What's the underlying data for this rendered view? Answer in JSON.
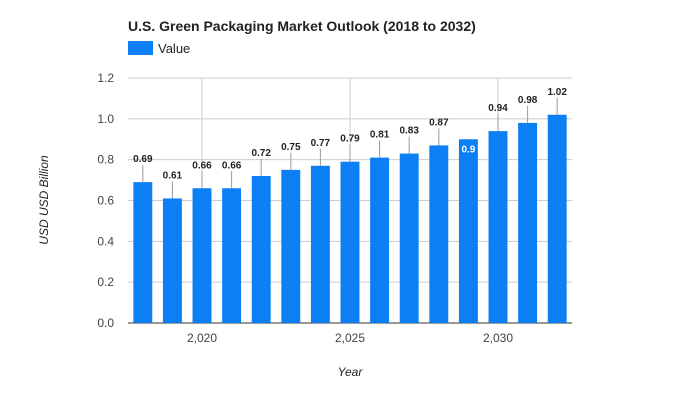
{
  "chart_data": {
    "type": "bar",
    "title": "U.S. Green Packaging Market Outlook (2018 to 2032)",
    "xlabel": "Year",
    "ylabel": "USD USD Billion",
    "ylim": [
      0,
      1.2
    ],
    "yticks": [
      "0.0",
      "0.2",
      "0.4",
      "0.6",
      "0.8",
      "1.0",
      "1.2"
    ],
    "xticks": [
      {
        "x": 2020,
        "label": "2,020"
      },
      {
        "x": 2025,
        "label": "2,025"
      },
      {
        "x": 2030,
        "label": "2,030"
      }
    ],
    "grid": true,
    "legend_position": "top-left",
    "series": [
      {
        "name": "Value",
        "color": "#0d7ff5",
        "x": [
          2018,
          2019,
          2020,
          2021,
          2022,
          2023,
          2024,
          2025,
          2026,
          2027,
          2028,
          2029,
          2030,
          2031,
          2032
        ],
        "values": [
          0.69,
          0.61,
          0.66,
          0.66,
          0.72,
          0.75,
          0.77,
          0.79,
          0.81,
          0.83,
          0.87,
          0.9,
          0.94,
          0.98,
          1.02
        ],
        "labels": [
          "0.69",
          "0.61",
          "0.66",
          "0.66",
          "0.72",
          "0.75",
          "0.77",
          "0.79",
          "0.81",
          "0.83",
          "0.87",
          "0.9",
          "0.94",
          "0.98",
          "1.02"
        ]
      }
    ]
  }
}
